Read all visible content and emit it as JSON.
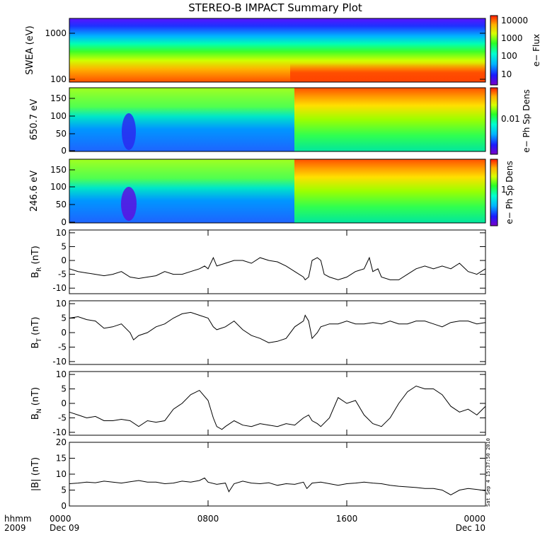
{
  "title": "STEREO-B IMPACT Summary Plot",
  "time_axis": {
    "corner_labels": [
      "hhmm",
      "2009"
    ],
    "ticks": [
      {
        "hours": 0,
        "label": "0000",
        "sublabel": "Dec 09"
      },
      {
        "hours": 8,
        "label": "0800",
        "sublabel": ""
      },
      {
        "hours": 16,
        "label": "1600",
        "sublabel": ""
      },
      {
        "hours": 24,
        "label": "0000",
        "sublabel": "Dec 10"
      }
    ],
    "range_hours": [
      0,
      24
    ]
  },
  "side_stamp": "Sat Sep  4 15:37:50 2010",
  "colors": {
    "line": "#000000",
    "colormap": [
      "#7a00c8",
      "#1a1aff",
      "#00b4ff",
      "#00ffd0",
      "#28ff28",
      "#d8ff00",
      "#ffb000",
      "#ff1a00"
    ]
  },
  "spectrogram_panels": [
    {
      "id": "swea",
      "ylabel": "SWEA (eV)",
      "yscale": "log",
      "ylim": [
        90,
        2000
      ],
      "yticks": [
        100,
        1000
      ],
      "ytick_labels": [
        "100",
        "1000"
      ],
      "colorbar_label": "e− Flux",
      "colorbar_ticks": [
        "10",
        "100",
        "1000",
        "10000"
      ],
      "colorbar_scale": "log"
    },
    {
      "id": "pad650",
      "ylabel": "650.7 eV",
      "yscale": "linear",
      "ylim": [
        0,
        180
      ],
      "yticks": [
        0,
        50,
        100,
        150
      ],
      "ytick_labels": [
        "0",
        "50",
        "100",
        "150"
      ],
      "colorbar_label": "e− Ph Sp Dens",
      "colorbar_ticks": [
        "0.01"
      ],
      "colorbar_scale": "log"
    },
    {
      "id": "pad246",
      "ylabel": "246.6 eV",
      "yscale": "linear",
      "ylim": [
        0,
        180
      ],
      "yticks": [
        0,
        50,
        100,
        150
      ],
      "ytick_labels": [
        "0",
        "50",
        "100",
        "150"
      ],
      "colorbar_label": "e− Ph Sp Dens",
      "colorbar_ticks": [
        "1"
      ],
      "colorbar_scale": "log"
    }
  ],
  "chart_data": [
    {
      "type": "line",
      "id": "BR",
      "ylabel_main": "B",
      "ylabel_sub": "R",
      "ylabel_unit": " (nT)",
      "ylim": [
        -12,
        11
      ],
      "yticks": [
        -10,
        -5,
        0,
        5,
        10
      ],
      "x_hours": [
        0,
        0.5,
        1,
        1.5,
        2,
        2.5,
        3,
        3.5,
        4,
        4.5,
        5,
        5.5,
        6,
        6.5,
        7,
        7.5,
        7.8,
        8,
        8.3,
        8.5,
        9,
        9.5,
        10,
        10.5,
        11,
        11.5,
        12,
        12.5,
        13,
        13.5,
        13.6,
        13.8,
        14,
        14.3,
        14.5,
        14.7,
        15,
        15.5,
        16,
        16.5,
        17,
        17.3,
        17.5,
        17.8,
        18,
        18.5,
        19,
        19.5,
        20,
        20.5,
        21,
        21.5,
        22,
        22.5,
        23,
        23.5,
        24
      ],
      "values": [
        -3,
        -4,
        -4.5,
        -5,
        -5.5,
        -5,
        -4,
        -6,
        -6.5,
        -6,
        -5.5,
        -4,
        -5,
        -5,
        -4,
        -3,
        -2,
        -3,
        1,
        -2,
        -1,
        0,
        0,
        -1,
        1,
        0,
        -0.5,
        -2,
        -4,
        -6,
        -7,
        -6,
        0,
        1,
        0,
        -5,
        -6,
        -7,
        -6,
        -4,
        -3,
        1,
        -4,
        -3,
        -6,
        -7,
        -7,
        -5,
        -3,
        -2,
        -3,
        -2,
        -3,
        -1,
        -4,
        -5,
        -3
      ]
    },
    {
      "type": "line",
      "id": "BT",
      "ylabel_main": "B",
      "ylabel_sub": "T",
      "ylabel_unit": " (nT)",
      "ylim": [
        -11,
        11
      ],
      "yticks": [
        -10,
        -5,
        0,
        5,
        10
      ],
      "x_hours": [
        0,
        0.5,
        1,
        1.5,
        2,
        2.5,
        3,
        3.5,
        3.7,
        4,
        4.5,
        5,
        5.5,
        6,
        6.5,
        7,
        7.5,
        8,
        8.3,
        8.5,
        9,
        9.5,
        10,
        10.5,
        11,
        11.5,
        12,
        12.5,
        13,
        13.5,
        13.6,
        13.8,
        14,
        14.3,
        14.5,
        15,
        15.5,
        16,
        16.5,
        17,
        17.5,
        18,
        18.5,
        19,
        19.5,
        20,
        20.5,
        21,
        21.5,
        22,
        22.5,
        23,
        23.5,
        24
      ],
      "values": [
        5,
        5.5,
        4.5,
        4,
        1.5,
        2,
        3,
        0,
        -2.5,
        -1,
        0,
        2,
        3,
        5,
        6.5,
        7,
        6,
        5,
        2,
        1,
        2,
        4,
        1,
        -1,
        -2,
        -3.5,
        -3,
        -2,
        2,
        4,
        6,
        4,
        -2,
        0,
        2,
        3,
        3,
        4,
        3,
        3,
        3.5,
        3,
        4,
        3,
        3,
        4,
        4,
        3,
        2,
        3.5,
        4,
        4,
        3,
        3.5
      ]
    },
    {
      "type": "line",
      "id": "BN",
      "ylabel_main": "B",
      "ylabel_sub": "N",
      "ylabel_unit": " (nT)",
      "ylim": [
        -11,
        11
      ],
      "yticks": [
        -10,
        -5,
        0,
        5,
        10
      ],
      "x_hours": [
        0,
        0.5,
        1,
        1.5,
        2,
        2.5,
        3,
        3.5,
        4,
        4.5,
        5,
        5.5,
        6,
        6.5,
        7,
        7.5,
        8,
        8.3,
        8.5,
        8.8,
        9,
        9.5,
        10,
        10.5,
        11,
        11.5,
        12,
        12.5,
        13,
        13.3,
        13.5,
        13.8,
        14,
        14.3,
        14.5,
        15,
        15.5,
        16,
        16.5,
        17,
        17.5,
        18,
        18.5,
        19,
        19.5,
        20,
        20.5,
        21,
        21.5,
        22,
        22.5,
        23,
        23.5,
        24
      ],
      "values": [
        -3,
        -4,
        -5,
        -4.5,
        -6,
        -6,
        -5.5,
        -6,
        -8,
        -6,
        -6.5,
        -6,
        -2,
        0,
        3,
        4.5,
        1,
        -5,
        -8,
        -9,
        -8,
        -6,
        -7.5,
        -8,
        -7,
        -7.5,
        -8,
        -7,
        -7.5,
        -6,
        -5,
        -4,
        -6,
        -7,
        -8,
        -5,
        2,
        0,
        1,
        -4,
        -7,
        -8,
        -5,
        0,
        4,
        6,
        5,
        5,
        3,
        -1,
        -3,
        -2,
        -4,
        -1
      ]
    },
    {
      "type": "line",
      "id": "Bmag",
      "ylabel_main": "|B|",
      "ylabel_sub": "",
      "ylabel_unit": " (nT)",
      "ylim": [
        0,
        20
      ],
      "yticks": [
        0,
        5,
        10,
        15,
        20
      ],
      "x_hours": [
        0,
        0.5,
        1,
        1.5,
        2,
        2.5,
        3,
        3.5,
        4,
        4.5,
        5,
        5.5,
        6,
        6.5,
        7,
        7.5,
        7.8,
        8,
        8.5,
        9,
        9.2,
        9.5,
        10,
        10.5,
        11,
        11.5,
        12,
        12.5,
        13,
        13.5,
        13.7,
        14,
        14.5,
        15,
        15.5,
        16,
        16.5,
        17,
        17.5,
        18,
        18.5,
        19,
        19.5,
        20,
        20.5,
        21,
        21.5,
        22,
        22.5,
        23,
        23.5,
        24
      ],
      "values": [
        7,
        7.2,
        7.5,
        7.3,
        7.8,
        7.5,
        7.2,
        7.6,
        8,
        7.5,
        7.5,
        7,
        7.2,
        7.8,
        7.5,
        8,
        8.8,
        7.5,
        6.8,
        7.2,
        4.5,
        7,
        7.8,
        7.2,
        7,
        7.3,
        6.5,
        7,
        6.8,
        7.5,
        5.5,
        7.2,
        7.5,
        7,
        6.5,
        7,
        7.2,
        7.5,
        7.2,
        7,
        6.5,
        6.2,
        6,
        5.8,
        5.5,
        5.5,
        5,
        3.5,
        5,
        5.5,
        5.2,
        4.8
      ]
    }
  ]
}
